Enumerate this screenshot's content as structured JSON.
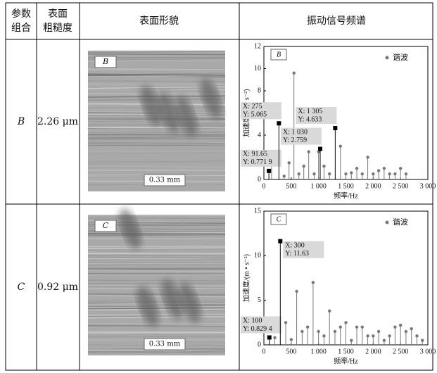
{
  "table": {
    "header": [
      [
        "参数",
        "组合"
      ],
      [
        "表面",
        "粗糙度"
      ],
      [
        "表面形貌"
      ],
      [
        "振动信号频谱"
      ]
    ],
    "rows": [
      {
        "parameter": "B",
        "roughness": "2.26 μm",
        "image_label": "B",
        "scale_bar": "0.33 mm"
      },
      {
        "parameter": "C",
        "roughness": "0.92 μm",
        "image_label": "C",
        "scale_bar": "0.33 mm"
      }
    ]
  },
  "chart_data": [
    {
      "type": "stem",
      "label": "B",
      "xlabel": "频率/Hz",
      "ylabel": "加速度/(m • s⁻²)",
      "xlim": [
        0,
        3000
      ],
      "ylim": [
        0,
        12
      ],
      "xticks": [
        0,
        500,
        {
          "value": 1000,
          "label": "1 000"
        },
        {
          "value": 1500,
          "label": "1 500"
        },
        {
          "value": 2000,
          "label": "2 000"
        },
        {
          "value": 2500,
          "label": "2 500"
        },
        {
          "value": 3000,
          "label": "3 000"
        }
      ],
      "yticks": [
        0,
        2,
        4,
        6,
        8,
        10,
        12
      ],
      "legend": "upper right",
      "series": [
        {
          "name": "谐波",
          "color": "#777777",
          "x": [
            140,
            370,
            460,
            550,
            640,
            730,
            820,
            920,
            1000,
            1100,
            1200,
            1400,
            1500,
            1600,
            1700,
            1800,
            1900,
            2000,
            2100,
            2200,
            2300,
            2400,
            2500,
            2600
          ],
          "values": [
            1.4,
            0.3,
            1.5,
            9.6,
            0.5,
            1.2,
            2.5,
            0.5,
            2.5,
            1.2,
            0.5,
            3.0,
            0.5,
            0.6,
            1.0,
            0.5,
            2.0,
            0.5,
            0.8,
            1.0,
            0.5,
            0.5,
            1.0,
            0.5
          ]
        }
      ],
      "datatips": [
        {
          "x": 91.65,
          "y": 0.7719,
          "x_label": "X: 91.65",
          "y_label": "Y: 0.771 9"
        },
        {
          "x": 275,
          "y": 5.065,
          "x_label": "X: 275",
          "y_label": "Y: 5.065"
        },
        {
          "x": 1030,
          "y": 2.759,
          "x_label": "X: 1 030",
          "y_label": "Y: 2.759"
        },
        {
          "x": 1305,
          "y": 4.633,
          "x_label": "X: 1 305",
          "y_label": "Y: 4.633"
        }
      ]
    },
    {
      "type": "stem",
      "label": "C",
      "xlabel": "频率/Hz",
      "ylabel": "加速度/(m • s⁻²)",
      "xlim": [
        0,
        3000
      ],
      "ylim": [
        0,
        15
      ],
      "xticks": [
        0,
        500,
        {
          "value": 1000,
          "label": "1 000"
        },
        {
          "value": 1500,
          "label": "1 500"
        },
        {
          "value": 2000,
          "label": "2 000"
        },
        {
          "value": 2500,
          "label": "2 500"
        },
        {
          "value": 3000,
          "label": "3 000"
        }
      ],
      "yticks": [
        0,
        5,
        10,
        15
      ],
      "legend": "upper right",
      "series": [
        {
          "name": "谐波",
          "color": "#777777",
          "x": [
            200,
            400,
            500,
            600,
            700,
            800,
            900,
            1000,
            1100,
            1200,
            1300,
            1400,
            1500,
            1600,
            1700,
            1800,
            1900,
            2000,
            2100,
            2200,
            2300,
            2400,
            2500,
            2600,
            2700,
            2800,
            2900
          ],
          "values": [
            0.8,
            2.5,
            0.6,
            6.0,
            1.5,
            2.0,
            7.0,
            1.5,
            1.0,
            3.8,
            1.5,
            2.0,
            2.5,
            0.5,
            2.0,
            2.0,
            1.0,
            1.0,
            1.5,
            0.5,
            1.0,
            2.0,
            2.2,
            1.5,
            1.8,
            1.0,
            0.5
          ]
        }
      ],
      "datatips": [
        {
          "x": 100,
          "y": 0.8294,
          "x_label": "X: 100",
          "y_label": "Y: 0.829 4"
        },
        {
          "x": 300,
          "y": 11.63,
          "x_label": "X: 300",
          "y_label": "Y: 11.63"
        }
      ]
    }
  ]
}
